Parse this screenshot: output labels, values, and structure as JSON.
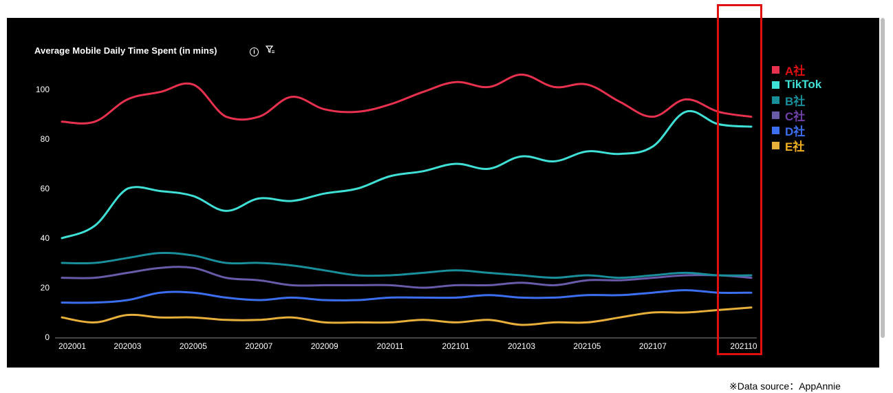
{
  "chart_title": "Average Mobile Daily Time Spent (in mins)",
  "icons": {
    "info": "info-icon",
    "filter": "filter-icon"
  },
  "source_note": "※Data source：AppAnnie",
  "chart_data": {
    "type": "line",
    "title": "Average Mobile Daily Time Spent (in mins)",
    "x": [
      "202001",
      "202002",
      "202003",
      "202004",
      "202005",
      "202006",
      "202007",
      "202008",
      "202009",
      "202010",
      "202011",
      "202012",
      "202101",
      "202102",
      "202103",
      "202104",
      "202105",
      "202106",
      "202107",
      "202108",
      "202109",
      "202110"
    ],
    "x_tick_labels": [
      "202001",
      "202003",
      "202005",
      "202007",
      "202009",
      "202011",
      "202101",
      "202103",
      "202105",
      "202107",
      "202110"
    ],
    "y_ticks": [
      "0",
      "20",
      "40",
      "60",
      "80",
      "100"
    ],
    "ylim": [
      0,
      100
    ],
    "grid": false,
    "legend_position": "right",
    "series": [
      {
        "name": "A社",
        "color": "#e8314f",
        "label_color": "#e01010",
        "values": [
          87,
          87,
          96,
          99,
          102,
          89,
          89,
          97,
          92,
          91,
          94,
          99,
          103,
          101,
          106,
          101,
          102,
          95,
          89,
          96,
          91,
          89
        ]
      },
      {
        "name": "TikTok",
        "color": "#3fe0d6",
        "label_color": "#3fe0d6",
        "values": [
          40,
          45,
          60,
          59,
          57,
          51,
          56,
          55,
          58,
          60,
          65,
          67,
          70,
          68,
          73,
          71,
          75,
          74,
          77,
          91,
          86,
          85
        ]
      },
      {
        "name": "B社",
        "color": "#1a8f9c",
        "label_color": "#1a8f9c",
        "values": [
          30,
          30,
          32,
          34,
          33,
          30,
          30,
          29,
          27,
          25,
          25,
          26,
          27,
          26,
          25,
          24,
          25,
          24,
          25,
          26,
          25,
          25
        ]
      },
      {
        "name": "C社",
        "color": "#6a5aaa",
        "label_color": "#7040a8",
        "values": [
          24,
          24,
          26,
          28,
          28,
          24,
          23,
          21,
          21,
          21,
          21,
          20,
          21,
          21,
          22,
          21,
          23,
          23,
          24,
          25,
          25,
          24
        ]
      },
      {
        "name": "D社",
        "color": "#3b6ff0",
        "label_color": "#3b6ff0",
        "values": [
          14,
          14,
          15,
          18,
          18,
          16,
          15,
          16,
          15,
          15,
          16,
          16,
          16,
          17,
          16,
          16,
          17,
          17,
          18,
          19,
          18,
          18
        ]
      },
      {
        "name": "E社",
        "color": "#e8b03a",
        "label_color": "#f0b020",
        "values": [
          8,
          6,
          9,
          8,
          8,
          7,
          7,
          8,
          6,
          6,
          6,
          7,
          6,
          7,
          5,
          6,
          6,
          8,
          10,
          10,
          11,
          12
        ]
      }
    ]
  }
}
